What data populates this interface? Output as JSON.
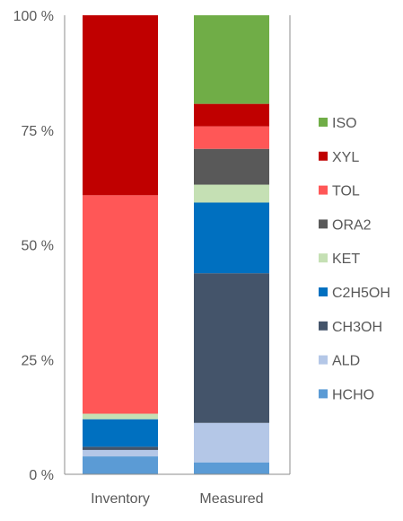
{
  "chart_data": {
    "type": "bar",
    "stacked": true,
    "normalized": true,
    "categories": [
      "Inventory",
      "Measured"
    ],
    "ylim": [
      0,
      100
    ],
    "y_ticks": [
      0,
      25,
      50,
      75,
      100
    ],
    "y_tick_labels": [
      "0 %",
      "25 %",
      "50 %",
      "75 %",
      "100 %"
    ],
    "xlabel": "",
    "ylabel": "",
    "title": "",
    "grid": false,
    "legend_position": "right",
    "series": [
      {
        "name": "HCHO",
        "color": "#5B9BD5",
        "values": [
          3.9,
          2.6
        ]
      },
      {
        "name": "ALD",
        "color": "#B4C7E7",
        "values": [
          1.4,
          8.6
        ]
      },
      {
        "name": "CH3OH",
        "color": "#44546A",
        "values": [
          0.7,
          32.6
        ]
      },
      {
        "name": "C2H5OH",
        "color": "#0070C0",
        "values": [
          6.0,
          15.4
        ]
      },
      {
        "name": "KET",
        "color": "#C5E0B4",
        "values": [
          1.2,
          3.9
        ]
      },
      {
        "name": "ORA2",
        "color": "#595959",
        "values": [
          0.0,
          7.8
        ]
      },
      {
        "name": "TOL",
        "color": "#FF5757",
        "values": [
          47.6,
          4.9
        ]
      },
      {
        "name": "XYL",
        "color": "#C00000",
        "values": [
          39.2,
          4.9
        ]
      },
      {
        "name": "ISO",
        "color": "#70AD47",
        "values": [
          0.0,
          19.3
        ]
      }
    ]
  }
}
